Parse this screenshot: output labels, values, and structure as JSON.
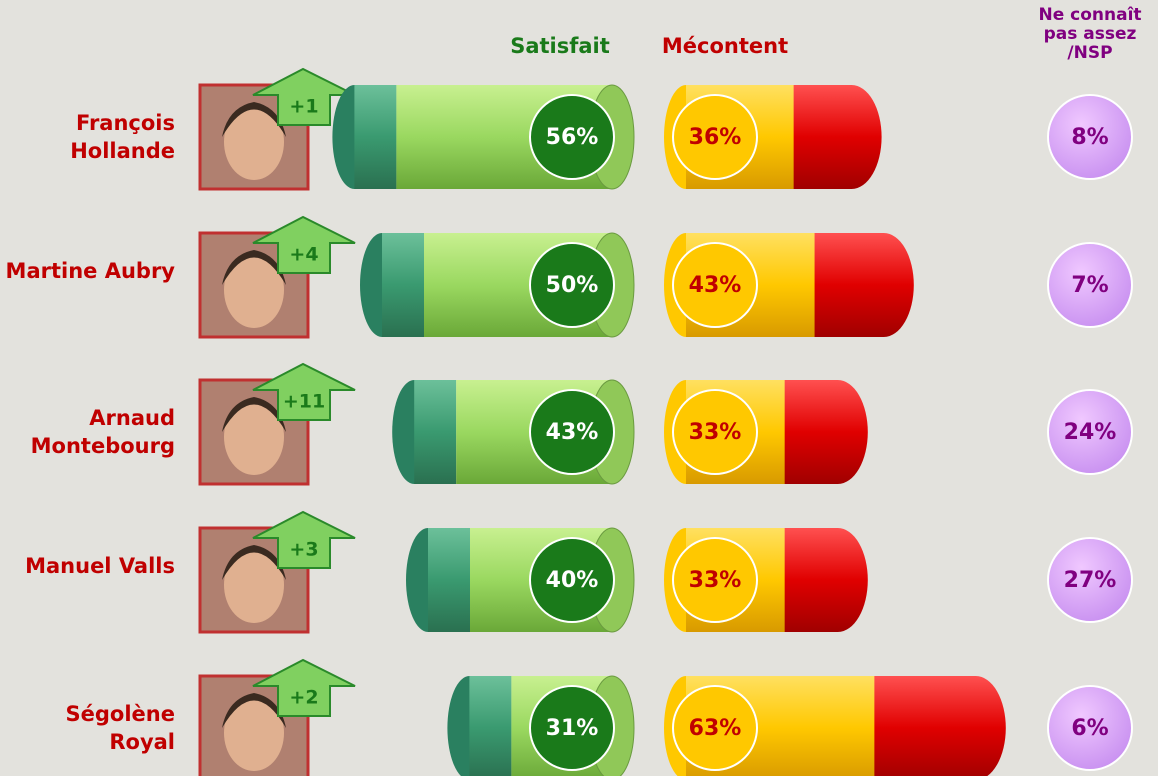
{
  "chart_data": {
    "type": "cylinder-bar",
    "categories": [
      "François Hollande",
      "Martine Aubry",
      "Arnaud Montebourg",
      "Manuel Valls",
      "Ségolène Royal"
    ],
    "series": [
      {
        "name": "Satisfait",
        "color": "#1a7a1a",
        "values": [
          56,
          50,
          43,
          40,
          31
        ],
        "value_labels": [
          "56%",
          "50%",
          "43%",
          "40%",
          "31%"
        ]
      },
      {
        "name": "Mécontent",
        "color": "#c00000",
        "values": [
          36,
          43,
          33,
          33,
          63
        ],
        "value_labels": [
          "36%",
          "43%",
          "33%",
          "33%",
          "63%"
        ]
      },
      {
        "name": "Ne connaît pas assez /NSP",
        "color": "#800080",
        "values": [
          8,
          7,
          24,
          27,
          6
        ],
        "value_labels": [
          "8%",
          "7%",
          "24%",
          "27%",
          "6%"
        ]
      }
    ],
    "changes": {
      "values": [
        1,
        4,
        11,
        3,
        2
      ],
      "value_labels": [
        "+1",
        "+4",
        "+11",
        "+3",
        "+2"
      ]
    }
  }
}
